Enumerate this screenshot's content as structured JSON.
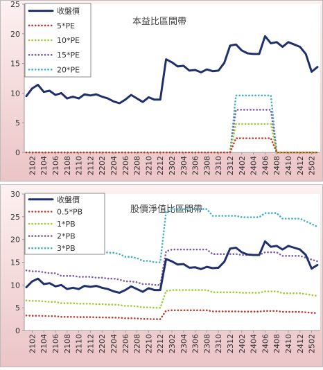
{
  "chart_data": [
    {
      "type": "line",
      "title": "本益比區間帶",
      "categories": [
        null,
        "2102",
        null,
        "2104",
        null,
        "2106",
        null,
        "2108",
        null,
        "2110",
        null,
        "2112",
        null,
        "2202",
        null,
        "2204",
        null,
        "2206",
        null,
        "2208",
        null,
        "2210",
        null,
        "2212",
        null,
        "2302",
        null,
        "2304",
        null,
        "2306",
        null,
        "2308",
        null,
        "2310",
        null,
        "2312",
        null,
        "2402",
        null,
        "2404",
        null,
        "2406",
        null,
        "2408",
        null,
        "2410",
        null,
        "2412",
        null,
        "2502",
        null
      ],
      "ylim": [
        0,
        25
      ],
      "yticks": [
        0,
        5,
        10,
        15,
        20,
        25
      ],
      "legend": "upper left",
      "series": [
        {
          "name": "收盤價",
          "color": "#1f2f6b",
          "style": "solid",
          "values": [
            9.5,
            10.8,
            11.4,
            10.2,
            10.4,
            9.7,
            10.0,
            9.1,
            9.4,
            9.1,
            9.8,
            9.6,
            9.8,
            9.4,
            9.1,
            8.6,
            8.3,
            8.9,
            9.7,
            9.1,
            8.5,
            9.3,
            8.9,
            8.9,
            15.7,
            15.2,
            14.5,
            14.6,
            13.8,
            13.9,
            13.5,
            14.0,
            13.7,
            13.8,
            15.1,
            18.0,
            18.2,
            17.2,
            16.7,
            16.6,
            16.6,
            19.6,
            18.4,
            18.6,
            17.8,
            18.6,
            18.2,
            17.8,
            16.6,
            13.6,
            14.4
          ]
        },
        {
          "name": "5*PE",
          "color": "#c0392b",
          "style": "dotted",
          "values": [
            0,
            0,
            0,
            0,
            0,
            0,
            0,
            0,
            0,
            0,
            0,
            0,
            0,
            0,
            0,
            0,
            0,
            0,
            0,
            0,
            0,
            0,
            0,
            0,
            0,
            0,
            0,
            0,
            0,
            0,
            0,
            0,
            0,
            0,
            0,
            0,
            2.4,
            2.4,
            2.4,
            2.4,
            2.4,
            2.4,
            2.4,
            0,
            0,
            0,
            0,
            0,
            0,
            0,
            0
          ]
        },
        {
          "name": "10*PE",
          "color": "#9acd32",
          "style": "dotted",
          "values": [
            0,
            0,
            0,
            0,
            0,
            0,
            0,
            0,
            0,
            0,
            0,
            0,
            0,
            0,
            0,
            0,
            0,
            0,
            0,
            0,
            0,
            0,
            0,
            0,
            0,
            0,
            0,
            0,
            0,
            0,
            0,
            0,
            0,
            0,
            0,
            0,
            4.8,
            4.8,
            4.8,
            4.8,
            4.8,
            4.8,
            4.8,
            0,
            0,
            0,
            0,
            0,
            0,
            0,
            0
          ]
        },
        {
          "name": "15*PE",
          "color": "#7b5ea7",
          "style": "dotted",
          "values": [
            0,
            0,
            0,
            0,
            0,
            0,
            0,
            0,
            0,
            0,
            0,
            0,
            0,
            0,
            0,
            0,
            0,
            0,
            0,
            0,
            0,
            0,
            0,
            0,
            0,
            0,
            0,
            0,
            0,
            0,
            0,
            0,
            0,
            0,
            0,
            0,
            7.2,
            7.2,
            7.2,
            7.2,
            7.2,
            7.2,
            7.2,
            0,
            0,
            0,
            0,
            0,
            0,
            0,
            0
          ]
        },
        {
          "name": "20*PE",
          "color": "#3fb0c8",
          "style": "dotted",
          "values": [
            0,
            0,
            0,
            0,
            0,
            0,
            0,
            0,
            0,
            0,
            0,
            0,
            0,
            0,
            0,
            0,
            0,
            0,
            0,
            0,
            0,
            0,
            0,
            0,
            0,
            0,
            0,
            0,
            0,
            0,
            0,
            0,
            0,
            0,
            0,
            0,
            9.6,
            9.6,
            9.6,
            9.6,
            9.6,
            9.6,
            9.6,
            0,
            0,
            0,
            0,
            0,
            0,
            0,
            0
          ]
        }
      ]
    },
    {
      "type": "line",
      "title": "股價淨值比區間帶",
      "categories": [
        null,
        "2102",
        null,
        "2104",
        null,
        "2106",
        null,
        "2108",
        null,
        "2110",
        null,
        "2112",
        null,
        "2202",
        null,
        "2204",
        null,
        "2206",
        null,
        "2208",
        null,
        "2210",
        null,
        "2212",
        null,
        "2302",
        null,
        "2304",
        null,
        "2306",
        null,
        "2308",
        null,
        "2310",
        null,
        "2312",
        null,
        "2402",
        null,
        "2404",
        null,
        "2406",
        null,
        "2408",
        null,
        "2410",
        null,
        "2412",
        null,
        "2502",
        null
      ],
      "ylim": [
        0,
        30
      ],
      "yticks": [
        0,
        5,
        10,
        15,
        20,
        25,
        30
      ],
      "legend": "upper left",
      "series": [
        {
          "name": "收盤價",
          "color": "#1f2f6b",
          "style": "solid",
          "values": [
            9.5,
            10.8,
            11.4,
            10.2,
            10.4,
            9.7,
            10.0,
            9.1,
            9.4,
            9.1,
            9.8,
            9.6,
            9.8,
            9.4,
            9.1,
            8.6,
            8.3,
            8.9,
            9.7,
            9.1,
            8.5,
            9.3,
            8.9,
            8.9,
            15.7,
            15.2,
            14.5,
            14.6,
            13.8,
            13.9,
            13.5,
            14.0,
            13.7,
            13.8,
            15.1,
            18.0,
            18.2,
            17.2,
            16.7,
            16.6,
            16.6,
            19.6,
            18.4,
            18.6,
            17.8,
            18.6,
            18.2,
            17.8,
            16.6,
            13.6,
            14.4
          ]
        },
        {
          "name": "0.5*PB",
          "color": "#c0392b",
          "style": "dotted",
          "values": [
            3.3,
            3.25,
            3.25,
            3.2,
            3.15,
            3.15,
            3.0,
            3.0,
            3.0,
            2.95,
            2.95,
            2.95,
            2.9,
            2.9,
            2.85,
            2.85,
            2.8,
            2.7,
            2.7,
            2.65,
            2.55,
            2.55,
            2.5,
            2.5,
            4.35,
            4.45,
            4.45,
            4.45,
            4.45,
            4.45,
            4.45,
            4.45,
            4.2,
            4.2,
            4.2,
            4.2,
            4.2,
            4.15,
            4.15,
            4.15,
            4.15,
            4.3,
            4.3,
            4.3,
            4.1,
            4.1,
            4.1,
            4.1,
            4.0,
            3.9,
            3.8
          ]
        },
        {
          "name": "1*PB",
          "color": "#9acd32",
          "style": "dotted",
          "values": [
            6.6,
            6.5,
            6.5,
            6.4,
            6.3,
            6.3,
            6.0,
            6.0,
            6.0,
            5.9,
            5.9,
            5.9,
            5.8,
            5.8,
            5.7,
            5.7,
            5.6,
            5.4,
            5.4,
            5.3,
            5.1,
            5.1,
            5.0,
            5.0,
            8.7,
            8.9,
            8.9,
            8.9,
            8.9,
            8.9,
            8.9,
            8.9,
            8.4,
            8.4,
            8.4,
            8.4,
            8.4,
            8.3,
            8.3,
            8.3,
            8.3,
            8.6,
            8.6,
            8.6,
            8.2,
            8.2,
            8.2,
            8.2,
            8.0,
            7.8,
            7.6
          ]
        },
        {
          "name": "2*PB",
          "color": "#7b5ea7",
          "style": "dotted",
          "values": [
            13.2,
            13,
            13,
            12.8,
            12.6,
            12.6,
            12,
            12,
            12,
            11.8,
            11.8,
            11.8,
            11.6,
            11.6,
            11.4,
            11.4,
            11.2,
            10.8,
            10.8,
            10.6,
            10.2,
            10.2,
            10,
            10,
            17.4,
            17.8,
            17.8,
            17.8,
            17.8,
            17.8,
            17.8,
            17.8,
            16.8,
            16.8,
            16.8,
            16.8,
            16.8,
            16.6,
            16.6,
            16.6,
            16.6,
            17.2,
            17.2,
            17.2,
            16.4,
            16.4,
            16.4,
            16.4,
            16,
            15.6,
            15.2
          ]
        },
        {
          "name": "3*PB",
          "color": "#3fb0c8",
          "style": "dotted",
          "values": [
            19.8,
            19.5,
            19.5,
            19.2,
            18.9,
            18.9,
            18,
            18,
            18,
            17.7,
            17.7,
            17.7,
            17.4,
            17.4,
            17.1,
            17.1,
            16.8,
            16.2,
            16.2,
            15.9,
            15.3,
            15.3,
            15,
            15,
            26.1,
            26.7,
            26.7,
            26.7,
            26.7,
            26.7,
            26.7,
            26.7,
            25.2,
            25.2,
            25.2,
            25.2,
            25.2,
            24.9,
            24.9,
            24.9,
            24.9,
            25.8,
            25.8,
            25.8,
            24.6,
            24.6,
            24.6,
            24.6,
            24,
            23.4,
            22.8
          ]
        }
      ]
    }
  ]
}
